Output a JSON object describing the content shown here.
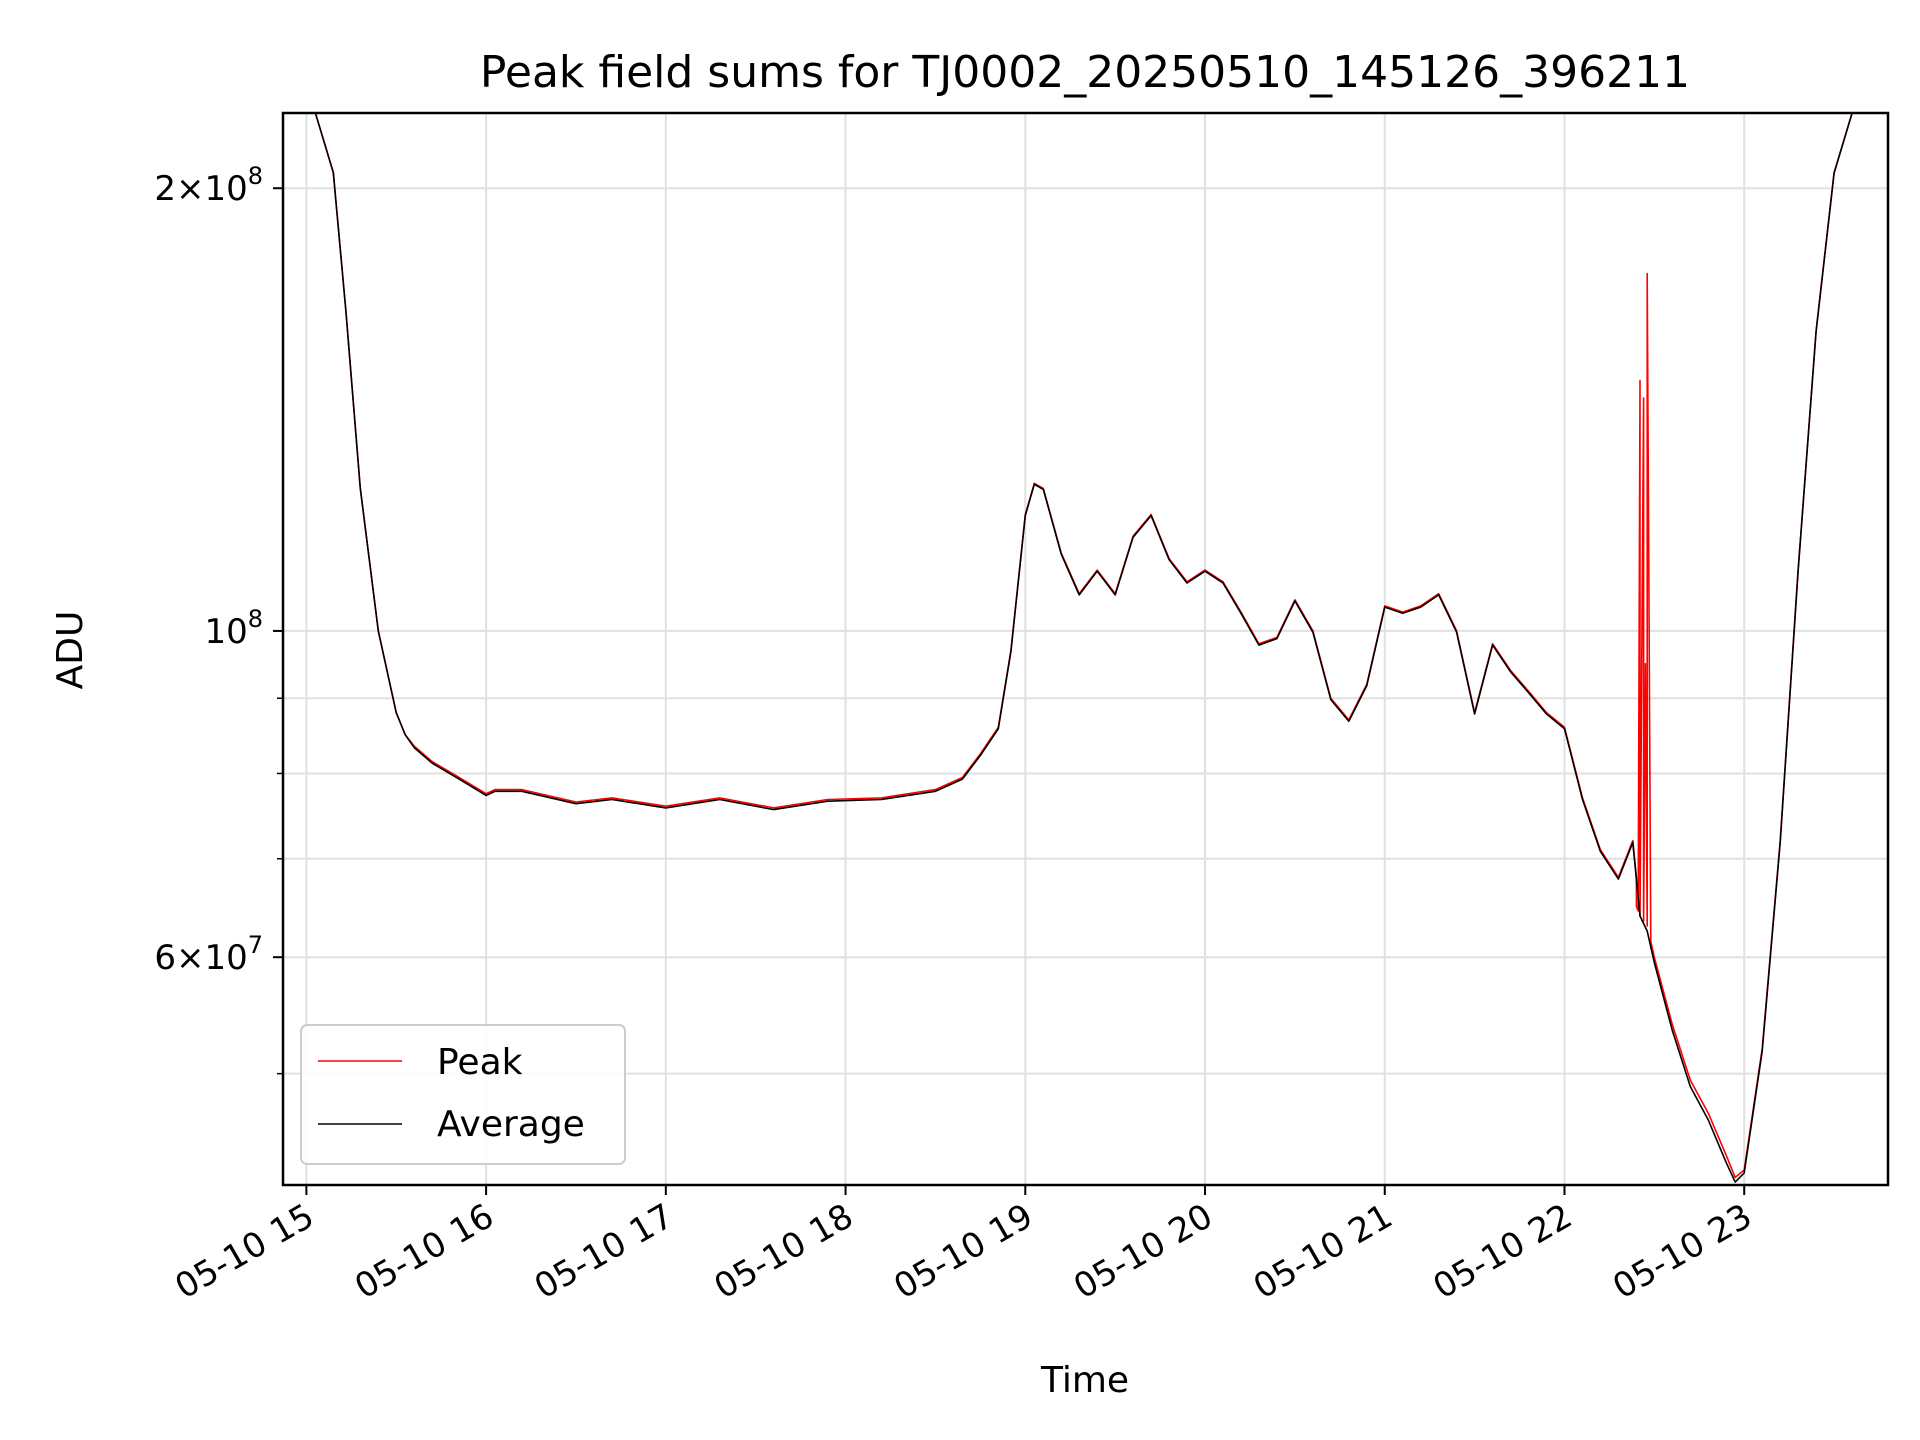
{
  "chart_data": {
    "type": "line",
    "title": "Peak field sums for TJ0002_20250510_145126_396211",
    "xlabel": "Time",
    "ylabel": "ADU",
    "yscale": "log",
    "grid": true,
    "legend_placement": "lower-left",
    "x_unit": "hours on 2025-05-10",
    "xlim": [
      14.87,
      23.8
    ],
    "ylim": [
      42000000,
      225000000
    ],
    "x_ticks": [
      {
        "value": 15,
        "label": "05-10 15"
      },
      {
        "value": 16,
        "label": "05-10 16"
      },
      {
        "value": 17,
        "label": "05-10 17"
      },
      {
        "value": 18,
        "label": "05-10 18"
      },
      {
        "value": 19,
        "label": "05-10 19"
      },
      {
        "value": 20,
        "label": "05-10 20"
      },
      {
        "value": 21,
        "label": "05-10 21"
      },
      {
        "value": 22,
        "label": "05-10 22"
      },
      {
        "value": 23,
        "label": "05-10 23"
      }
    ],
    "y_major_ticks": [
      {
        "value": 60000000,
        "mant": "6",
        "exp": "7"
      },
      {
        "value": 100000000,
        "mant": "",
        "exp": "8"
      },
      {
        "value": 200000000,
        "mant": "2",
        "exp": "8"
      }
    ],
    "y_minor_ticks": [
      50000000,
      70000000,
      80000000,
      90000000
    ],
    "series": [
      {
        "name": "Peak",
        "color": "#ff0000",
        "x": [
          14.87,
          15.05,
          15.15,
          15.22,
          15.3,
          15.4,
          15.5,
          15.55,
          15.6,
          15.7,
          15.85,
          16.0,
          16.05,
          16.2,
          16.5,
          16.7,
          17.0,
          17.3,
          17.6,
          17.9,
          18.2,
          18.5,
          18.65,
          18.75,
          18.85,
          18.92,
          19.0,
          19.05,
          19.1,
          19.2,
          19.3,
          19.4,
          19.5,
          19.6,
          19.7,
          19.8,
          19.9,
          20.0,
          20.1,
          20.2,
          20.3,
          20.4,
          20.5,
          20.6,
          20.7,
          20.8,
          20.9,
          21.0,
          21.1,
          21.2,
          21.3,
          21.4,
          21.5,
          21.6,
          21.7,
          21.8,
          21.9,
          22.0,
          22.1,
          22.2,
          22.3,
          22.38,
          22.4,
          22.4,
          22.41,
          22.42,
          22.42,
          22.44,
          22.44,
          22.45,
          22.46,
          22.46,
          22.48,
          22.5,
          22.6,
          22.7,
          22.8,
          22.9,
          22.95,
          23.0,
          23.1,
          23.2,
          23.3,
          23.4,
          23.5,
          23.6,
          23.8
        ],
        "y": [
          225000000,
          225000000,
          205000000,
          165000000,
          125000000,
          100000000,
          88000000,
          85000000,
          83500000,
          81500000,
          79500000,
          77500000,
          78000000,
          78000000,
          76500000,
          77000000,
          76000000,
          77000000,
          75800000,
          76800000,
          77000000,
          78000000,
          79500000,
          82500000,
          86000000,
          97000000,
          120000000,
          126000000,
          125000000,
          113000000,
          106000000,
          110000000,
          106000000,
          116000000,
          120000000,
          112000000,
          108000000,
          110000000,
          108000000,
          103000000,
          98000000,
          99000000,
          105000000,
          100000000,
          90000000,
          87000000,
          92000000,
          104000000,
          103000000,
          104000000,
          106000000,
          100000000,
          88000000,
          98000000,
          94000000,
          91000000,
          88000000,
          86000000,
          77000000,
          71000000,
          68000000,
          72000000,
          68000000,
          65000000,
          64500000,
          148000000,
          64000000,
          144000000,
          63500000,
          95000000,
          63000000,
          175000000,
          61500000,
          60000000,
          54000000,
          49500000,
          47000000,
          44000000,
          42500000,
          43000000,
          52000000,
          72000000,
          110000000,
          160000000,
          205000000,
          225000000,
          225000000
        ]
      },
      {
        "name": "Average",
        "color": "#000000",
        "x": [
          14.87,
          15.05,
          15.15,
          15.22,
          15.3,
          15.4,
          15.5,
          15.55,
          15.6,
          15.7,
          15.85,
          16.0,
          16.05,
          16.2,
          16.5,
          16.7,
          17.0,
          17.3,
          17.6,
          17.9,
          18.2,
          18.5,
          18.65,
          18.75,
          18.85,
          18.92,
          19.0,
          19.05,
          19.1,
          19.2,
          19.3,
          19.4,
          19.5,
          19.6,
          19.7,
          19.8,
          19.9,
          20.0,
          20.1,
          20.2,
          20.3,
          20.4,
          20.5,
          20.6,
          20.7,
          20.8,
          20.9,
          21.0,
          21.1,
          21.2,
          21.3,
          21.4,
          21.5,
          21.6,
          21.7,
          21.8,
          21.9,
          22.0,
          22.1,
          22.2,
          22.3,
          22.38,
          22.42,
          22.46,
          22.5,
          22.6,
          22.7,
          22.8,
          22.9,
          22.95,
          23.0,
          23.1,
          23.2,
          23.3,
          23.4,
          23.5,
          23.6,
          23.8
        ],
        "y": [
          225000000,
          225000000,
          205000000,
          165000000,
          125000000,
          100000000,
          88000000,
          85000000,
          83300000,
          81300000,
          79300000,
          77300000,
          77800000,
          77800000,
          76300000,
          76800000,
          75800000,
          76800000,
          75600000,
          76600000,
          76800000,
          77800000,
          79300000,
          82300000,
          85800000,
          96800000,
          119800000,
          125800000,
          124800000,
          112800000,
          105800000,
          109800000,
          105800000,
          115800000,
          119800000,
          111800000,
          107800000,
          109800000,
          107800000,
          102800000,
          97800000,
          98800000,
          104800000,
          99800000,
          89800000,
          86800000,
          91800000,
          103800000,
          102800000,
          103800000,
          105800000,
          99800000,
          87800000,
          97800000,
          93800000,
          90800000,
          87800000,
          85800000,
          76800000,
          70800000,
          67800000,
          71800000,
          64000000,
          62500000,
          59500000,
          53500000,
          49000000,
          46500000,
          43500000,
          42200000,
          42800000,
          51800000,
          71800000,
          109800000,
          159800000,
          204800000,
          225000000,
          225000000
        ]
      }
    ]
  }
}
